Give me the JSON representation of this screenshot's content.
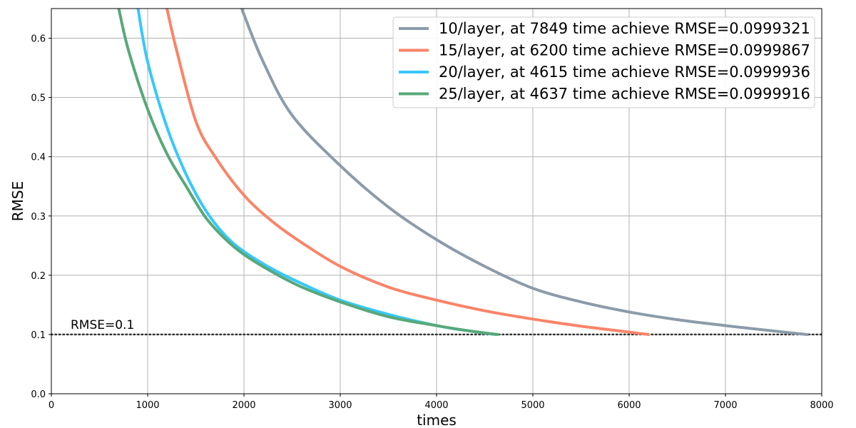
{
  "chart_data": {
    "type": "line",
    "title": "",
    "xlabel": "times",
    "ylabel": "RMSE",
    "xlim": [
      0,
      8000
    ],
    "ylim": [
      0,
      0.65
    ],
    "x_ticks": [
      "0",
      "1000",
      "2000",
      "3000",
      "4000",
      "5000",
      "6000",
      "7000",
      "8000"
    ],
    "y_ticks": [
      "0.0",
      "0.1",
      "0.2",
      "0.3",
      "0.4",
      "0.5",
      "0.6"
    ],
    "grid": true,
    "legend_position": "top-right",
    "reference_line": {
      "y": 0.1,
      "style": "dotted",
      "color": "#333333",
      "label": "RMSE=0.1"
    },
    "series": [
      {
        "name": "10/layer, at 7849 time achieve RMSE=0.0999321",
        "color": "#8c9bab",
        "x": [
          1980,
          2000,
          2200,
          2500,
          3000,
          3500,
          4000,
          4500,
          5000,
          5500,
          6000,
          6500,
          7000,
          7500,
          7849
        ],
        "y": [
          0.65,
          0.64,
          0.56,
          0.47,
          0.385,
          0.315,
          0.26,
          0.215,
          0.178,
          0.155,
          0.138,
          0.125,
          0.115,
          0.106,
          0.0999321
        ]
      },
      {
        "name": "15/layer, at 6200 time achieve RMSE=0.0999867",
        "color": "#fa8468",
        "x": [
          1200,
          1300,
          1500,
          1700,
          2000,
          2300,
          2600,
          3000,
          3500,
          4000,
          4500,
          5000,
          5500,
          6000,
          6200
        ],
        "y": [
          0.65,
          0.58,
          0.46,
          0.4,
          0.335,
          0.29,
          0.255,
          0.215,
          0.18,
          0.158,
          0.14,
          0.126,
          0.114,
          0.104,
          0.0999867
        ]
      },
      {
        "name": "20/layer, at 4615 time achieve RMSE=0.0999936",
        "color": "#38c8fa",
        "x": [
          900,
          1000,
          1200,
          1400,
          1600,
          1800,
          2000,
          2300,
          2600,
          3000,
          3500,
          4000,
          4300,
          4615
        ],
        "y": [
          0.65,
          0.56,
          0.45,
          0.37,
          0.31,
          0.268,
          0.24,
          0.21,
          0.186,
          0.158,
          0.134,
          0.115,
          0.107,
          0.0999936
        ]
      },
      {
        "name": "25/layer, at 4637 time achieve RMSE=0.0999916",
        "color": "#58a87a",
        "x": [
          700,
          800,
          1000,
          1200,
          1400,
          1600,
          1800,
          2000,
          2300,
          2600,
          3000,
          3500,
          4000,
          4300,
          4637
        ],
        "y": [
          0.65,
          0.58,
          0.48,
          0.405,
          0.35,
          0.298,
          0.262,
          0.235,
          0.205,
          0.18,
          0.155,
          0.13,
          0.115,
          0.107,
          0.0999916
        ]
      }
    ]
  }
}
